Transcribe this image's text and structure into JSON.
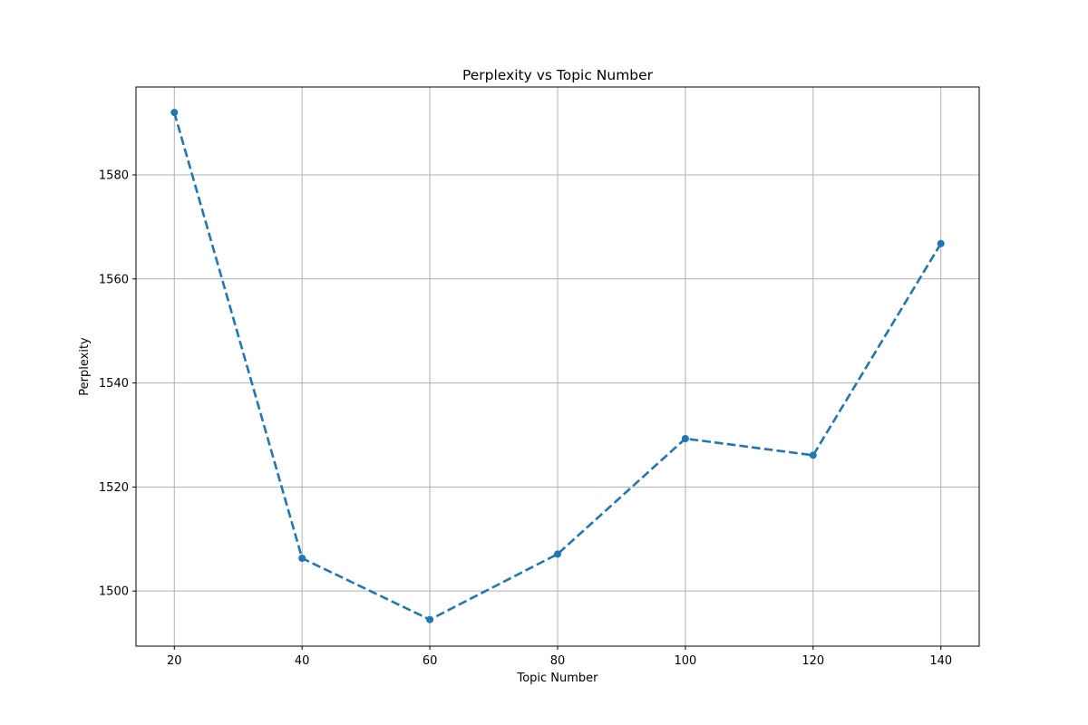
{
  "chart_data": {
    "type": "line",
    "title": "Perplexity vs Topic Number",
    "xlabel": "Topic Number",
    "ylabel": "Perplexity",
    "x": [
      20,
      40,
      60,
      80,
      100,
      120,
      140
    ],
    "series": [
      {
        "values": [
          1592.0,
          1506.3,
          1494.5,
          1507.1,
          1529.3,
          1526.1,
          1566.8
        ],
        "color": "#1f77b4",
        "line_style": "dashed",
        "marker": "circle"
      }
    ],
    "xticks": [
      20,
      40,
      60,
      80,
      100,
      120,
      140
    ],
    "yticks": [
      1500,
      1520,
      1540,
      1560,
      1580
    ],
    "xlim": [
      14,
      146
    ],
    "ylim": [
      1489.4,
      1596.9
    ],
    "grid": true,
    "legend": "none"
  }
}
